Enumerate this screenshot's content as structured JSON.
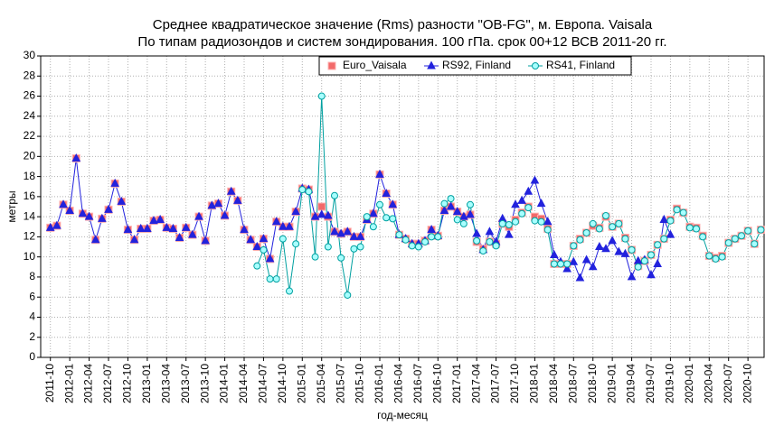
{
  "chart_data": {
    "type": "line",
    "title": "Среднее квадратическое значение (Rms) разности \"OB-FG\", м. Европа. Vaisala",
    "subtitle": "По типам радиозондов и систем зондирования. 100 гПа. срок 00+12 ВСВ 2011-20 гг.",
    "x_label": "год-месяц",
    "y_label": "метры",
    "ylim": [
      0,
      30
    ],
    "yticks": [
      0,
      2,
      4,
      6,
      8,
      10,
      12,
      14,
      16,
      18,
      20,
      22,
      24,
      26,
      28,
      30
    ],
    "grid": true,
    "legend": "top",
    "categories": [
      null,
      "2011-10",
      null,
      null,
      "2012-01",
      null,
      null,
      "2012-04",
      null,
      null,
      "2012-07",
      null,
      null,
      "2012-10",
      null,
      null,
      "2013-01",
      null,
      null,
      "2013-04",
      null,
      null,
      "2013-07",
      null,
      null,
      "2013-10",
      null,
      null,
      "2014-01",
      null,
      null,
      "2014-04",
      null,
      null,
      "2014-07",
      null,
      null,
      "2014-10",
      null,
      null,
      "2015-01",
      null,
      null,
      "2015-04",
      null,
      null,
      "2015-07",
      null,
      null,
      "2015-10",
      null,
      null,
      "2016-01",
      null,
      null,
      "2016-04",
      null,
      null,
      "2016-07",
      null,
      null,
      "2016-10",
      null,
      null,
      "2017-01",
      null,
      null,
      "2017-04",
      null,
      null,
      "2017-07",
      null,
      null,
      "2017-10",
      null,
      null,
      "2018-01",
      null,
      null,
      "2018-04",
      null,
      null,
      "2018-07",
      null,
      null,
      "2018-10",
      null,
      null,
      "2019-01",
      null,
      null,
      "2019-04",
      null,
      null,
      "2019-07",
      null,
      null,
      "2019-10",
      null,
      null,
      "2020-01",
      null,
      null,
      "2020-04",
      null,
      null,
      "2020-07",
      null,
      null,
      "2020-10",
      null,
      null
    ],
    "series": [
      {
        "name": "Euro_Vaisala",
        "color": "#f26a6a",
        "marker": "square",
        "line": false,
        "values": [
          null,
          12.9,
          13.1,
          15.2,
          14.6,
          19.8,
          14.3,
          14.0,
          11.7,
          13.8,
          14.7,
          17.3,
          15.5,
          12.7,
          11.7,
          12.8,
          12.8,
          13.6,
          13.7,
          12.9,
          12.8,
          11.9,
          12.9,
          12.2,
          14.0,
          11.6,
          15.1,
          15.3,
          14.1,
          16.5,
          15.6,
          12.7,
          11.7,
          11.0,
          11.8,
          9.8,
          13.5,
          13.0,
          13.0,
          14.5,
          16.8,
          16.7,
          14.0,
          15.0,
          14.0,
          12.5,
          12.3,
          12.5,
          12.0,
          12.0,
          13.7,
          14.3,
          18.2,
          16.3,
          15.2,
          12.2,
          11.8,
          11.3,
          11.3,
          11.6,
          12.7,
          12.1,
          14.6,
          15.0,
          14.5,
          14.0,
          14.2,
          11.5,
          10.8,
          11.5,
          11.3,
          13.3,
          13.0,
          13.7,
          14.4,
          15.0,
          14.0,
          13.8,
          12.8,
          9.3,
          9.3,
          9.3,
          11.1,
          11.8,
          12.4,
          13.1,
          12.9,
          14.0,
          13.0,
          13.3,
          11.9,
          10.7,
          9.1,
          9.6,
          10.2,
          11.2,
          11.8,
          13.7,
          14.8,
          14.4,
          13.0,
          12.9,
          12.1,
          10.1,
          9.9,
          10.1,
          11.4,
          11.8,
          12.1,
          12.6,
          11.3,
          12.7
        ]
      },
      {
        "name": "RS92, Finland",
        "color": "#2222dd",
        "marker": "triangle",
        "line": true,
        "values": [
          null,
          12.9,
          13.1,
          15.2,
          14.6,
          19.8,
          14.3,
          14.0,
          11.7,
          13.8,
          14.7,
          17.3,
          15.5,
          12.7,
          11.7,
          12.8,
          12.8,
          13.6,
          13.7,
          12.9,
          12.8,
          11.9,
          12.9,
          12.2,
          14.0,
          11.6,
          15.1,
          15.3,
          14.1,
          16.5,
          15.6,
          12.7,
          11.7,
          11.0,
          11.8,
          9.8,
          13.5,
          13.0,
          13.0,
          14.5,
          16.8,
          16.7,
          14.0,
          14.2,
          14.1,
          12.5,
          12.3,
          12.5,
          12.0,
          12.0,
          13.7,
          14.3,
          18.2,
          16.3,
          15.2,
          12.2,
          11.8,
          11.3,
          11.3,
          11.6,
          12.7,
          12.1,
          14.6,
          15.0,
          14.5,
          14.0,
          14.2,
          12.3,
          10.7,
          12.5,
          11.5,
          13.8,
          12.2,
          15.2,
          15.6,
          16.5,
          17.6,
          15.3,
          13.5,
          10.2,
          9.5,
          8.8,
          9.5,
          7.9,
          9.7,
          9.0,
          11.0,
          10.8,
          11.6,
          10.5,
          10.3,
          8.0,
          9.6,
          9.7,
          8.2,
          9.3,
          13.7,
          12.2,
          null,
          null,
          null,
          null,
          null,
          null,
          null,
          null,
          null,
          null,
          null,
          null,
          null,
          null
        ]
      },
      {
        "name": "RS41, Finland",
        "color": "#00a0a0",
        "marker": "circle",
        "line": true,
        "values": [
          null,
          null,
          null,
          null,
          null,
          null,
          null,
          null,
          null,
          null,
          null,
          null,
          null,
          null,
          null,
          null,
          null,
          null,
          null,
          null,
          null,
          null,
          null,
          null,
          null,
          null,
          null,
          null,
          null,
          null,
          null,
          null,
          null,
          9.1,
          10.7,
          7.8,
          7.8,
          11.8,
          6.6,
          11.3,
          16.7,
          16.5,
          10.0,
          26.0,
          11.0,
          16.1,
          9.9,
          6.2,
          10.8,
          11.0,
          14.0,
          13.0,
          15.2,
          13.9,
          13.8,
          12.2,
          11.7,
          11.1,
          11.0,
          11.5,
          12.0,
          12.0,
          15.3,
          15.8,
          13.7,
          13.3,
          15.2,
          11.6,
          10.6,
          11.5,
          11.1,
          13.3,
          13.2,
          13.5,
          14.3,
          14.9,
          13.6,
          13.5,
          12.7,
          9.3,
          9.3,
          9.3,
          11.1,
          11.7,
          12.4,
          13.3,
          12.8,
          14.1,
          13.0,
          13.3,
          11.8,
          10.7,
          9.0,
          9.6,
          10.2,
          11.2,
          11.8,
          13.6,
          14.7,
          14.4,
          12.9,
          12.8,
          12.0,
          10.1,
          9.8,
          10.0,
          11.4,
          11.8,
          12.1,
          12.6,
          11.3,
          12.7
        ]
      }
    ]
  }
}
